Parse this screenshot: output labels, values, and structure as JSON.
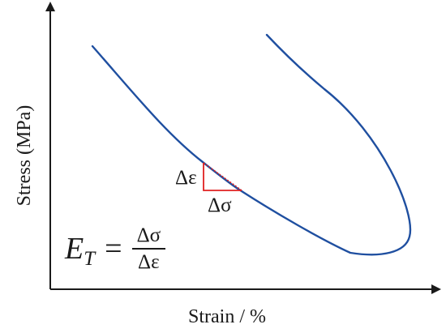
{
  "axes": {
    "xlabel": "Strain / %",
    "ylabel": "Stress (MPa)"
  },
  "triangle": {
    "rise_label": "Δε",
    "run_label": "Δσ"
  },
  "formula": {
    "lhs_symbol": "E",
    "lhs_subscript": "T",
    "equals": "=",
    "numerator": "Δσ",
    "denominator": "Δε"
  },
  "colors": {
    "curve": "#1f4fa0",
    "triangle": "#e02020",
    "axis": "#1a1a1a"
  }
}
